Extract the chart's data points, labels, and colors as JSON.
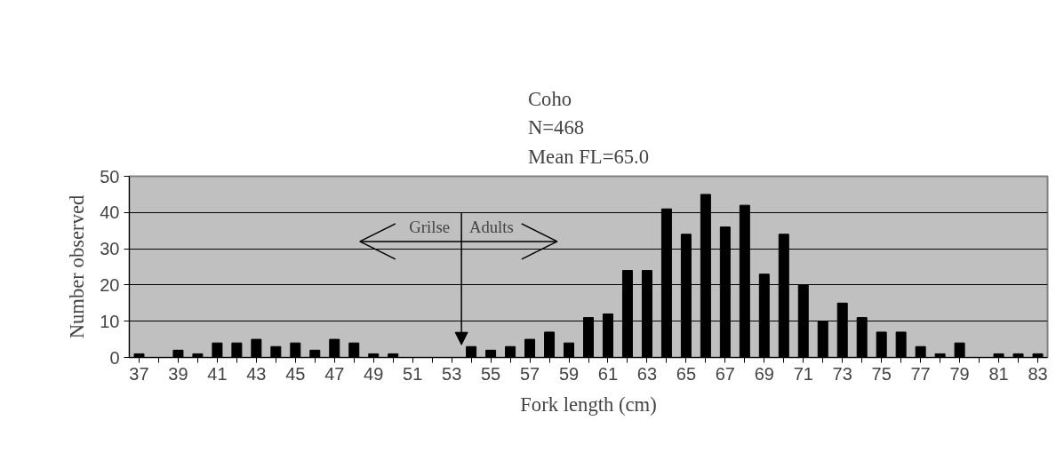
{
  "chart_data": {
    "type": "bar",
    "title": "Coho\nN=468\nMean FL=65.0",
    "xlabel": "Fork length (cm)",
    "ylabel": "Number observed",
    "categories": [
      "37",
      null,
      "39",
      null,
      "41",
      null,
      "43",
      null,
      "45",
      null,
      "47",
      null,
      "49",
      null,
      "51",
      null,
      "53",
      null,
      "55",
      null,
      "57",
      null,
      "59",
      null,
      "61",
      null,
      "63",
      null,
      "65",
      null,
      "67",
      null,
      "69",
      null,
      "71",
      null,
      "73",
      null,
      "75",
      null,
      "77",
      null,
      "79",
      null,
      "81",
      null,
      "83"
    ],
    "values": [
      1,
      0,
      2,
      1,
      4,
      4,
      5,
      3,
      4,
      2,
      5,
      4,
      1,
      1,
      0,
      0,
      0,
      3,
      2,
      3,
      5,
      7,
      4,
      11,
      12,
      24,
      24,
      41,
      34,
      45,
      36,
      42,
      23,
      34,
      20,
      10,
      15,
      11,
      7,
      7,
      3,
      1,
      4,
      0,
      1,
      1,
      1
    ],
    "color": "#000000",
    "ylim": [
      0,
      50
    ],
    "yticks": [
      0,
      10,
      20,
      30,
      40,
      50
    ],
    "grid": "y",
    "annotations": [
      "Grilse",
      "Adults"
    ]
  }
}
